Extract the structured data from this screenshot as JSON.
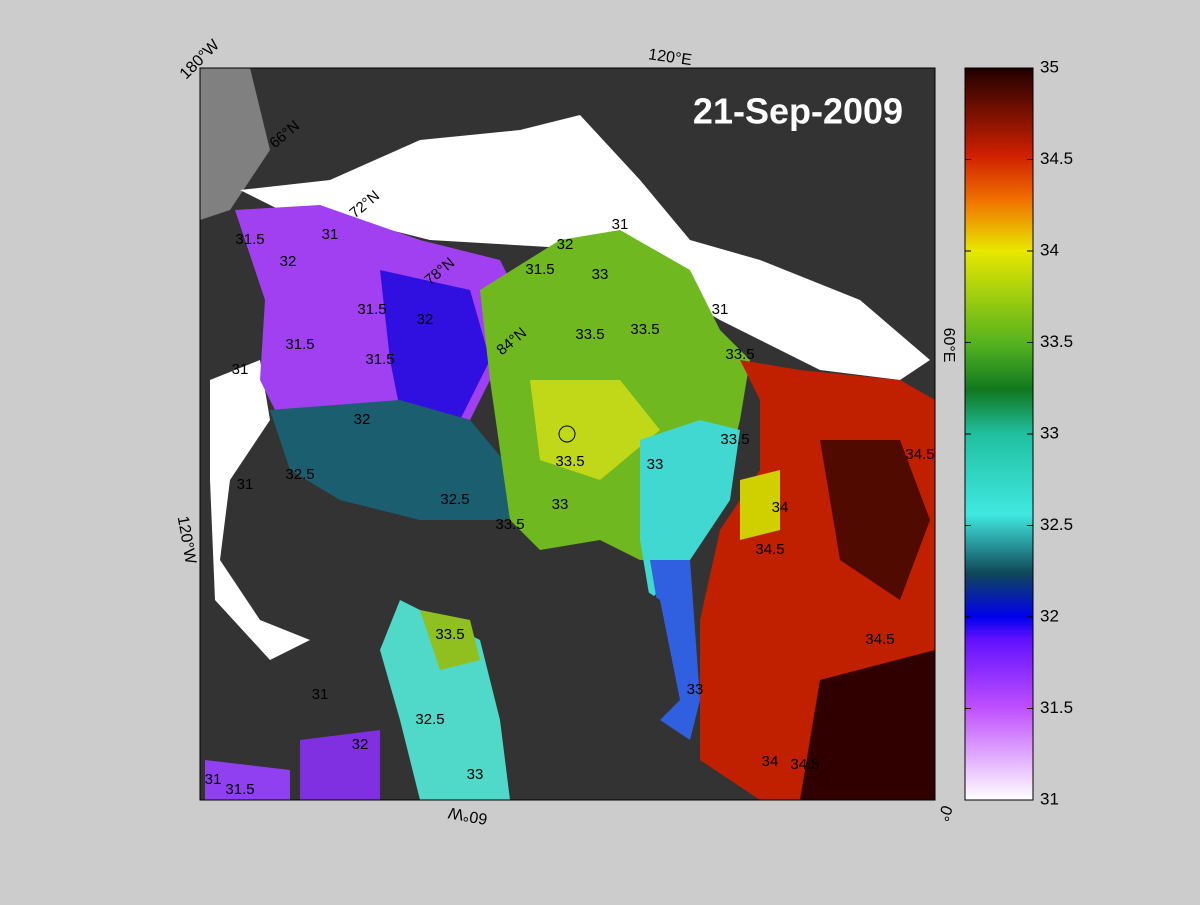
{
  "map": {
    "title": "21-Sep-2009",
    "lon_labels": [
      "180°W",
      "120°E",
      "60°E",
      "0°",
      "60°W",
      "120°W"
    ],
    "lat_labels": [
      "66°N",
      "72°N",
      "78°N",
      "84°N"
    ],
    "contour_labels": [
      31.5,
      31,
      32,
      31.5,
      32,
      31.5,
      31.5,
      31,
      32,
      32.5,
      33.5,
      33,
      33.5,
      33,
      33.5,
      33,
      33.5,
      33.5,
      33.5,
      34,
      34.5,
      34.5,
      34.5,
      34,
      34.5,
      33,
      32.5,
      33.5,
      31.5,
      31,
      32,
      31,
      33,
      32.5,
      31,
      31.5,
      32,
      31,
      31
    ]
  },
  "colorbar": {
    "lim": [
      31,
      35
    ],
    "ticks": [
      31,
      31.5,
      32,
      32.5,
      33,
      33.5,
      34,
      34.5,
      35
    ]
  }
}
